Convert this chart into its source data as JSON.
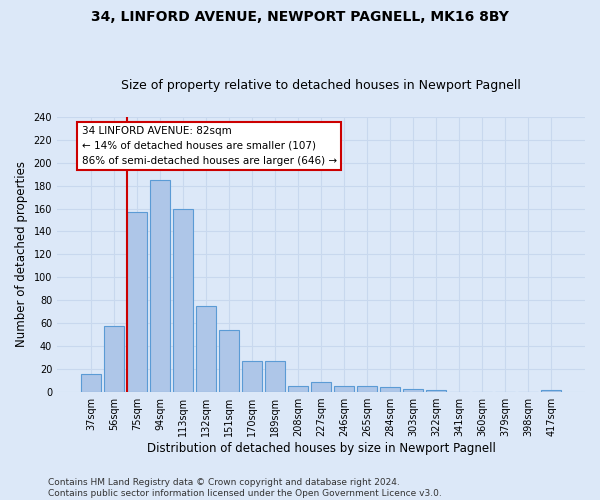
{
  "title": "34, LINFORD AVENUE, NEWPORT PAGNELL, MK16 8BY",
  "subtitle": "Size of property relative to detached houses in Newport Pagnell",
  "xlabel": "Distribution of detached houses by size in Newport Pagnell",
  "ylabel": "Number of detached properties",
  "categories": [
    "37sqm",
    "56sqm",
    "75sqm",
    "94sqm",
    "113sqm",
    "132sqm",
    "151sqm",
    "170sqm",
    "189sqm",
    "208sqm",
    "227sqm",
    "246sqm",
    "265sqm",
    "284sqm",
    "303sqm",
    "322sqm",
    "341sqm",
    "360sqm",
    "379sqm",
    "398sqm",
    "417sqm"
  ],
  "values": [
    16,
    58,
    157,
    185,
    160,
    75,
    54,
    27,
    27,
    5,
    9,
    5,
    5,
    4,
    3,
    2,
    0,
    0,
    0,
    0,
    2
  ],
  "bar_color": "#aec6e8",
  "bar_edge_color": "#5b9bd5",
  "background_color": "#dce8f8",
  "grid_color": "#c8d8ee",
  "annotation_text": "34 LINFORD AVENUE: 82sqm\n← 14% of detached houses are smaller (107)\n86% of semi-detached houses are larger (646) →",
  "annotation_box_color": "#ffffff",
  "annotation_box_edge_color": "#cc0000",
  "vline_color": "#cc0000",
  "ylim": [
    0,
    240
  ],
  "yticks": [
    0,
    20,
    40,
    60,
    80,
    100,
    120,
    140,
    160,
    180,
    200,
    220,
    240
  ],
  "footer_line1": "Contains HM Land Registry data © Crown copyright and database right 2024.",
  "footer_line2": "Contains public sector information licensed under the Open Government Licence v3.0.",
  "title_fontsize": 10,
  "subtitle_fontsize": 9,
  "xlabel_fontsize": 8.5,
  "ylabel_fontsize": 8.5,
  "tick_fontsize": 7,
  "annotation_fontsize": 7.5,
  "footer_fontsize": 6.5
}
